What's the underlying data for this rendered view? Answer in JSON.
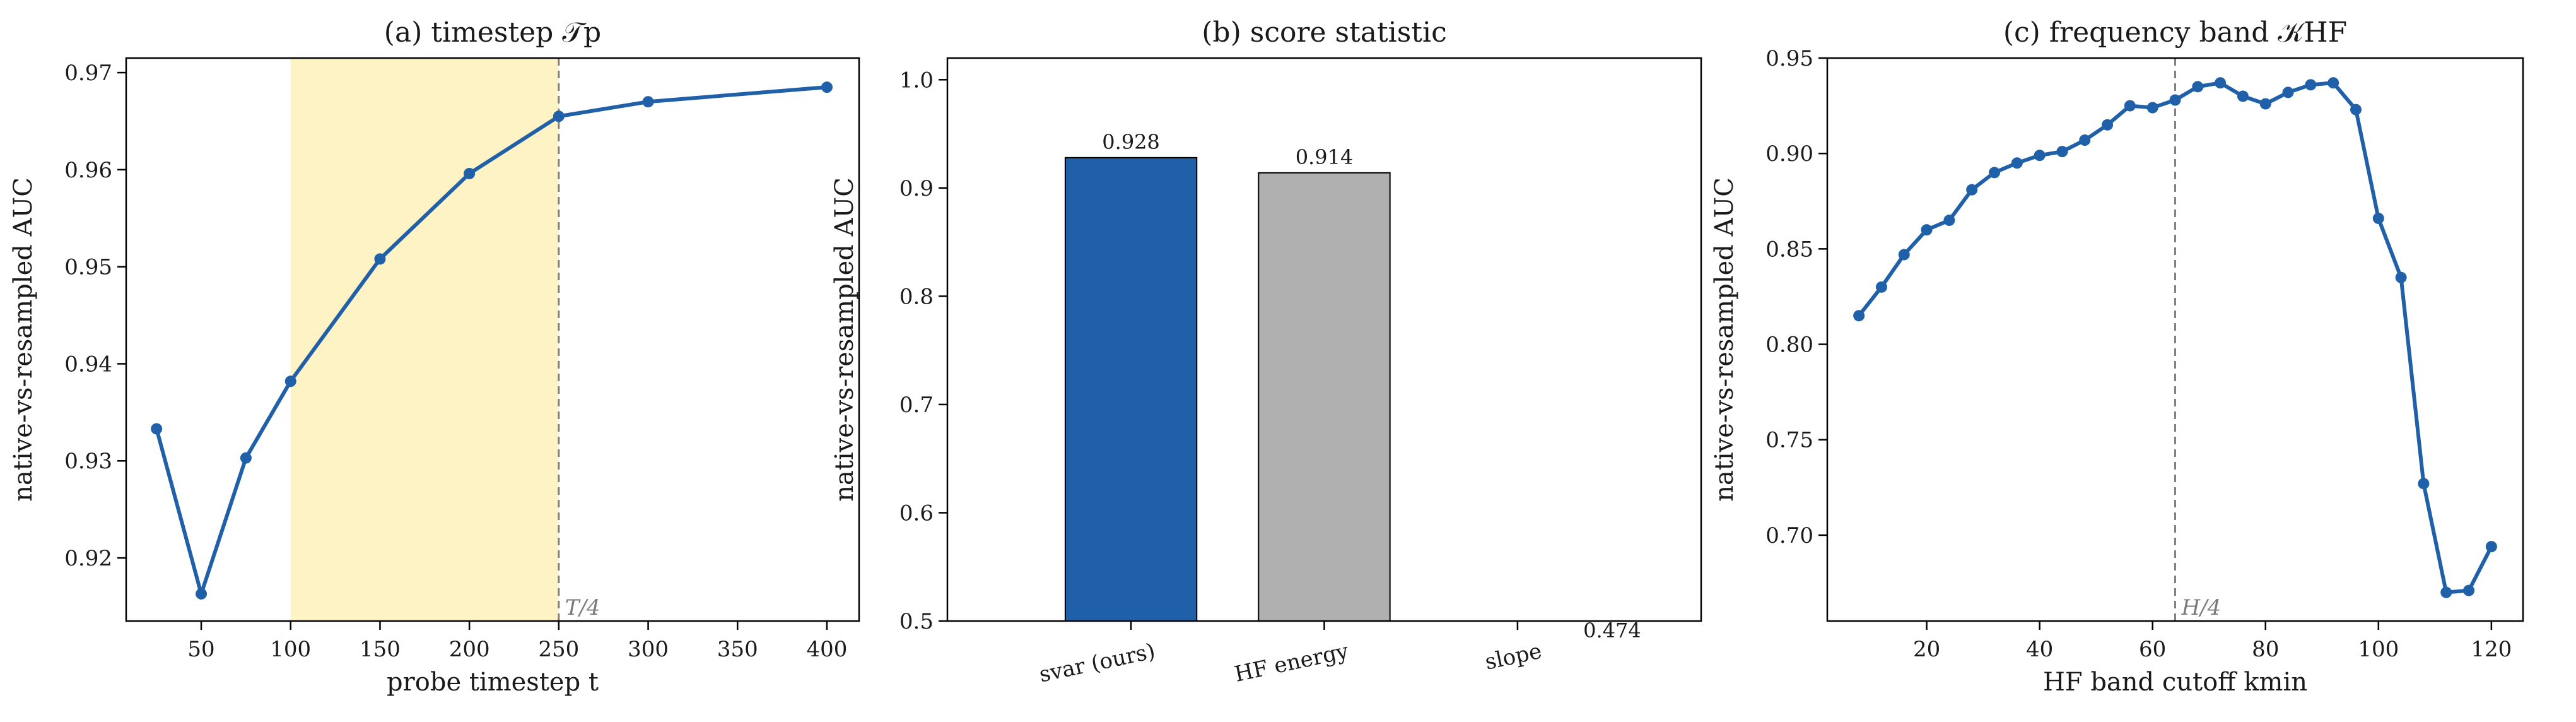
{
  "colors": {
    "line": "#2060a8",
    "bar_primary": "#2060a8",
    "bar_secondary": "#b0b0b0",
    "shade": "#fdf3c4",
    "ref_line": "#808080"
  },
  "chart_data": [
    {
      "type": "line",
      "title": "(a) timestep 𝒯p",
      "xlabel": "probe timestep t",
      "ylabel": "native-vs-resampled AUC",
      "xlim": [
        8,
        418
      ],
      "ylim": [
        0.9135,
        0.9715
      ],
      "xticks": [
        50,
        100,
        150,
        200,
        250,
        300,
        350,
        400
      ],
      "yticks": [
        0.92,
        0.93,
        0.94,
        0.95,
        0.96,
        0.97
      ],
      "shaded_span": [
        100,
        250
      ],
      "ref_line": {
        "x": 250,
        "label": "T/4"
      },
      "grid": false,
      "series": [
        {
          "x": [
            25,
            50,
            75,
            100,
            150,
            200,
            250,
            300,
            400
          ],
          "y": [
            0.9333,
            0.9163,
            0.9303,
            0.9382,
            0.9508,
            0.9596,
            0.9655,
            0.967,
            0.9685
          ]
        }
      ]
    },
    {
      "type": "bar",
      "title": "(b) score statistic",
      "xlabel": "",
      "ylabel": "native-vs-resampled AUC",
      "ylim": [
        0.5,
        1.02
      ],
      "yticks": [
        0.5,
        0.6,
        0.7,
        0.8,
        0.9,
        1.0
      ],
      "categories": [
        "svar (ours)",
        "HF energy",
        "slope"
      ],
      "values": [
        0.928,
        0.914,
        0.474
      ],
      "data_labels": [
        "0.928",
        "0.914",
        "0.474"
      ],
      "grid": false
    },
    {
      "type": "line",
      "title": "(c) frequency band 𝒦HF",
      "xlabel": "HF band cutoff kmin",
      "ylabel": "native-vs-resampled AUC",
      "xlim": [
        2.4,
        125.6
      ],
      "ylim": [
        0.655,
        0.95
      ],
      "xticks": [
        20,
        40,
        60,
        80,
        100,
        120
      ],
      "yticks": [
        0.7,
        0.75,
        0.8,
        0.85,
        0.9,
        0.95
      ],
      "ref_line": {
        "x": 64,
        "label": "H/4"
      },
      "grid": false,
      "series": [
        {
          "x": [
            8,
            12,
            16,
            20,
            24,
            28,
            32,
            36,
            40,
            44,
            48,
            52,
            56,
            60,
            64,
            68,
            72,
            76,
            80,
            84,
            88,
            92,
            96,
            100,
            104,
            108,
            112,
            116,
            120
          ],
          "y": [
            0.815,
            0.83,
            0.847,
            0.86,
            0.865,
            0.881,
            0.89,
            0.895,
            0.899,
            0.901,
            0.907,
            0.915,
            0.925,
            0.924,
            0.928,
            0.935,
            0.937,
            0.93,
            0.926,
            0.932,
            0.936,
            0.937,
            0.923,
            0.866,
            0.835,
            0.727,
            0.67,
            0.671,
            0.694
          ]
        }
      ]
    }
  ]
}
